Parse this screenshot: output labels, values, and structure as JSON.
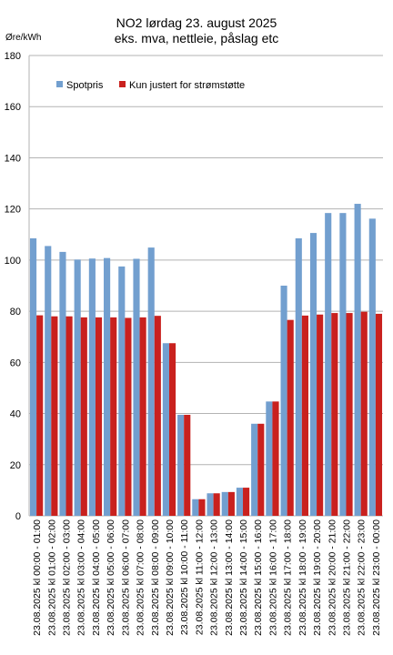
{
  "chart_data": {
    "type": "bar",
    "title": "NO2 lørdag 23. august 2025",
    "subtitle": "eks. mva, nettleie, påslag etc",
    "ylabel": "Øre/kWh",
    "xlabel": "",
    "ylim": [
      0,
      180
    ],
    "yticks": [
      "0",
      "20",
      "40",
      "60",
      "80",
      "100",
      "120",
      "140",
      "160",
      "180"
    ],
    "grid": true,
    "legend_position": "top-left",
    "categories": [
      "23.08.2025 kl 00:00 - 01:00",
      "23.08.2025 kl 01:00 - 02:00",
      "23.08.2025 kl 02:00 - 03:00",
      "23.08.2025 kl 03:00 - 04:00",
      "23.08.2025 kl 04:00 - 05:00",
      "23.08.2025 kl 05:00 - 06:00",
      "23.08.2025 kl 06:00 - 07:00",
      "23.08.2025 kl 07:00 - 08:00",
      "23.08.2025 kl 08:00 - 09:00",
      "23.08.2025 kl 09:00 - 10:00",
      "23.08.2025 kl 10:00 - 11:00",
      "23.08.2025 kl 11:00 - 12:00",
      "23.08.2025 kl 12:00 - 13:00",
      "23.08.2025 kl 13:00 - 14:00",
      "23.08.2025 kl 14:00 - 15:00",
      "23.08.2025 kl 15:00 - 16:00",
      "23.08.2025 kl 16:00 - 17:00",
      "23.08.2025 kl 17:00 - 18:00",
      "23.08.2025 kl 18:00 - 19:00",
      "23.08.2025 kl 19:00 - 20:00",
      "23.08.2025 kl 20:00 - 21:00",
      "23.08.2025 kl 21:00 - 22:00",
      "23.08.2025 kl 22:00 - 23:00",
      "23.08.2025 kl 23:00 - 00:00"
    ],
    "series": [
      {
        "name": "Spotpris",
        "color": "#729fcf",
        "values": [
          108.5,
          105.5,
          103.2,
          100.2,
          100.6,
          100.8,
          97.5,
          100.5,
          104.9,
          67.5,
          39.5,
          6.5,
          8.8,
          9.3,
          11.0,
          36.0,
          44.7,
          90.0,
          108.5,
          110.6,
          118.4,
          118.4,
          122.0,
          116.2
        ]
      },
      {
        "name": "Kun justert for strømstøtte",
        "color": "#c9211e",
        "values": [
          78.4,
          78.0,
          78.0,
          77.6,
          77.6,
          77.6,
          77.4,
          77.6,
          78.2,
          67.5,
          39.5,
          6.5,
          8.8,
          9.3,
          11.0,
          36.0,
          44.7,
          76.6,
          78.3,
          78.7,
          79.3,
          79.3,
          79.8,
          79.0
        ]
      }
    ]
  }
}
